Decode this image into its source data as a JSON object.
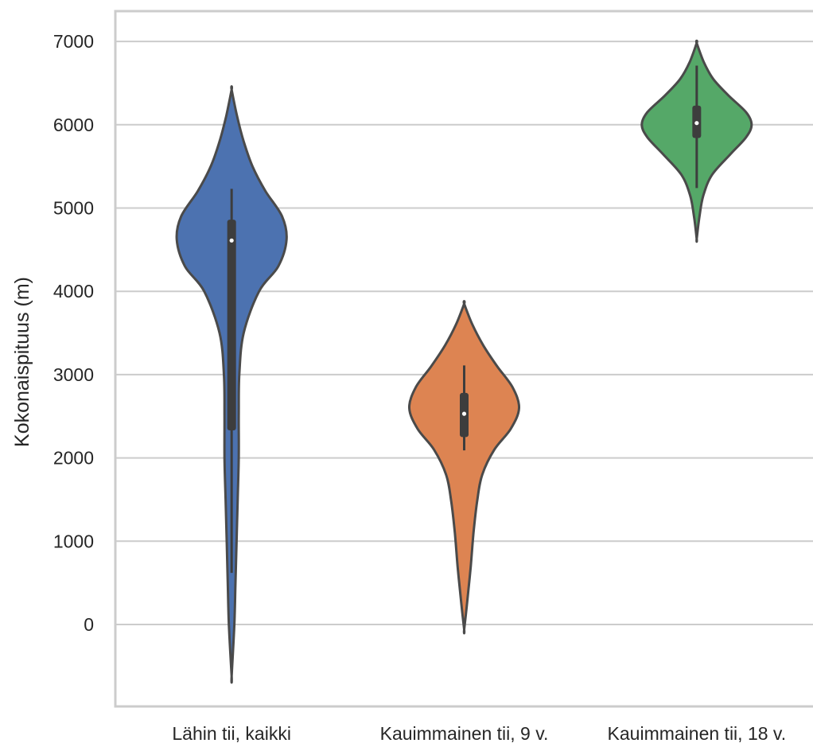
{
  "chart_data": {
    "type": "violin",
    "ylabel": "Kokonaispituus (m)",
    "ylim": [
      -1000,
      7400
    ],
    "yticks": [
      0,
      1000,
      2000,
      3000,
      4000,
      5000,
      6000,
      7000
    ],
    "grid": true,
    "categories": [
      "Lähin tii, kaikki",
      "Kauimmainen tii, 9 v.",
      "Kauimmainen tii, 18 v."
    ],
    "series": [
      {
        "category": "Lähin tii, kaikki",
        "color": "#4c72b0",
        "min": -620,
        "max": 6420,
        "q1": 2330,
        "median": 4610,
        "q3": 4860,
        "whisker_low": 620,
        "whisker_high": 5230,
        "density": [
          [
            -620,
            0
          ],
          [
            0,
            0.05
          ],
          [
            500,
            0.07
          ],
          [
            1000,
            0.09
          ],
          [
            1500,
            0.11
          ],
          [
            2000,
            0.13
          ],
          [
            2500,
            0.13
          ],
          [
            3000,
            0.14
          ],
          [
            3500,
            0.22
          ],
          [
            4000,
            0.5
          ],
          [
            4300,
            0.85
          ],
          [
            4620,
            1.0
          ],
          [
            4900,
            0.92
          ],
          [
            5200,
            0.62
          ],
          [
            5500,
            0.38
          ],
          [
            5800,
            0.22
          ],
          [
            6100,
            0.1
          ],
          [
            6420,
            0
          ]
        ]
      },
      {
        "category": "Kauimmainen tii, 9 v.",
        "color": "#dd8452",
        "min": -60,
        "max": 3850,
        "q1": 2250,
        "median": 2530,
        "q3": 2780,
        "whisker_low": 2090,
        "whisker_high": 3110,
        "density": [
          [
            -60,
            0
          ],
          [
            300,
            0.06
          ],
          [
            700,
            0.12
          ],
          [
            1100,
            0.17
          ],
          [
            1500,
            0.24
          ],
          [
            1800,
            0.33
          ],
          [
            2100,
            0.55
          ],
          [
            2350,
            0.85
          ],
          [
            2600,
            1.0
          ],
          [
            2850,
            0.88
          ],
          [
            3100,
            0.6
          ],
          [
            3350,
            0.35
          ],
          [
            3600,
            0.15
          ],
          [
            3850,
            0
          ]
        ]
      },
      {
        "category": "Kauimmainen tii, 18 v.",
        "color": "#55a868",
        "min": 4630,
        "max": 6980,
        "q1": 5840,
        "median": 6020,
        "q3": 6230,
        "whisker_low": 5240,
        "whisker_high": 6710,
        "density": [
          [
            4630,
            0
          ],
          [
            4900,
            0.05
          ],
          [
            5150,
            0.12
          ],
          [
            5400,
            0.28
          ],
          [
            5650,
            0.62
          ],
          [
            5850,
            0.9
          ],
          [
            6000,
            1.0
          ],
          [
            6150,
            0.9
          ],
          [
            6350,
            0.58
          ],
          [
            6550,
            0.3
          ],
          [
            6750,
            0.13
          ],
          [
            6980,
            0
          ]
        ]
      }
    ]
  }
}
